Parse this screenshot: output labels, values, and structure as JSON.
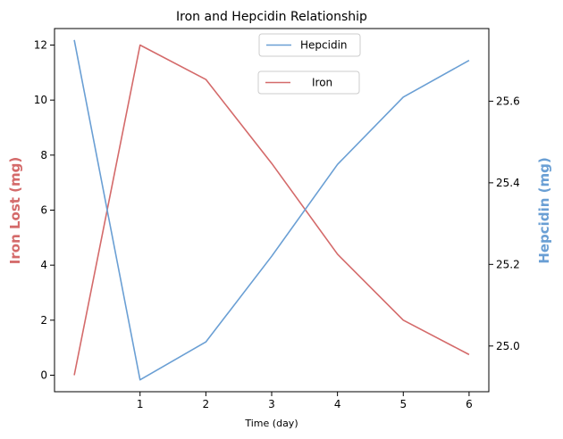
{
  "chart_data": {
    "type": "line",
    "title": "Iron and Hepcidin Relationship",
    "xlabel": "Time (day)",
    "ylabel_left": "Iron Lost (mg)",
    "ylabel_right": "Hepcidin (mg)",
    "x": [
      0,
      1,
      2,
      3,
      4,
      5,
      6
    ],
    "x_ticks": [
      1,
      2,
      3,
      4,
      5,
      6
    ],
    "xlim": [
      -0.3,
      6.3
    ],
    "ylim_left": [
      -0.6,
      12.6
    ],
    "ylim_right": [
      24.888,
      25.778
    ],
    "yticks_left": [
      0,
      2,
      4,
      6,
      8,
      10,
      12
    ],
    "yticks_right": [
      25.0,
      25.2,
      25.4,
      25.6
    ],
    "yticks_right_labels": [
      "25.0",
      "25.2",
      "25.4",
      "25.6"
    ],
    "series": [
      {
        "name": "Iron",
        "axis": "left",
        "color": "#d46a6a",
        "values": [
          0,
          12,
          10.75,
          7.7,
          4.4,
          2.0,
          0.75
        ]
      },
      {
        "name": "Hepcidin",
        "axis": "right",
        "color": "#6a9fd4",
        "values": [
          25.75,
          24.917,
          25.01,
          25.22,
          25.445,
          25.61,
          25.7
        ]
      }
    ],
    "legend": [
      {
        "label": "Hepcidin",
        "color": "#6a9fd4"
      },
      {
        "label": "Iron",
        "color": "#d46a6a"
      }
    ],
    "legend_placement": "upper-center",
    "grid": false
  }
}
